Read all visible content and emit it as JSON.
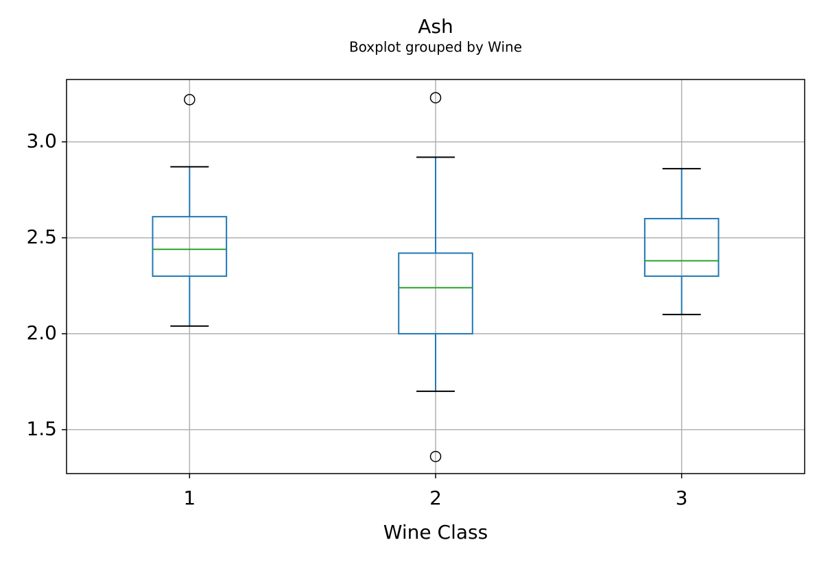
{
  "chart_data": {
    "type": "box",
    "title": "Ash",
    "subtitle": "Boxplot grouped by Wine",
    "xlabel": "Wine Class",
    "categories": [
      "1",
      "2",
      "3"
    ],
    "boxes": [
      {
        "whislo": 2.04,
        "q1": 2.3,
        "med": 2.44,
        "q3": 2.61,
        "whishi": 2.87,
        "fliers": [
          3.22
        ]
      },
      {
        "whislo": 1.7,
        "q1": 2.0,
        "med": 2.24,
        "q3": 2.42,
        "whishi": 2.92,
        "fliers": [
          3.23,
          1.36
        ]
      },
      {
        "whislo": 2.1,
        "q1": 2.3,
        "med": 2.38,
        "q3": 2.6,
        "whishi": 2.86,
        "fliers": []
      }
    ],
    "box_color": "#1f77b4",
    "median_color": "#2ca02c",
    "whisker_cap_color": "#000000",
    "ylim": [
      1.271,
      3.325
    ],
    "yticks": [
      {
        "value": 1.5,
        "label": "1.5"
      },
      {
        "value": 2.0,
        "label": "2.0"
      },
      {
        "value": 2.5,
        "label": "2.5"
      },
      {
        "value": 3.0,
        "label": "3.0"
      }
    ],
    "grid": true
  }
}
